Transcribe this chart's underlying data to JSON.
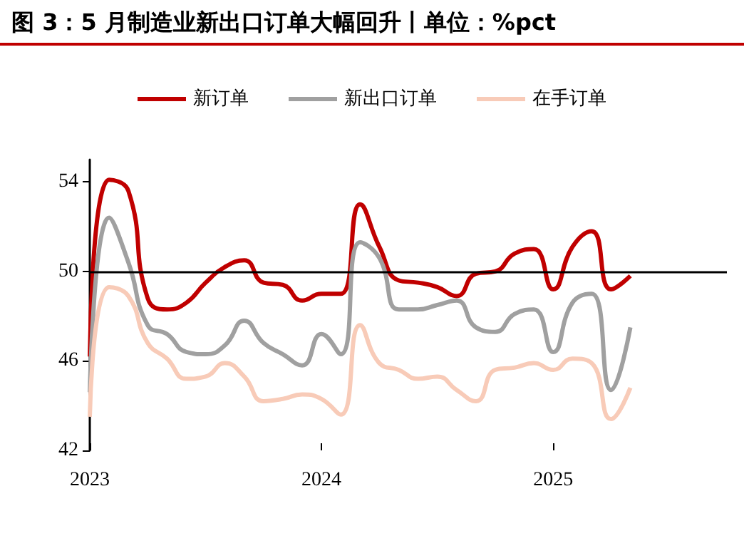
{
  "chart_data": {
    "type": "line",
    "title": "图 3：5 月制造业新出口订单大幅回升丨单位：%pct",
    "x": [
      "2023-01",
      "2023-02",
      "2023-03",
      "2023-04",
      "2023-05",
      "2023-06",
      "2023-07",
      "2023-08",
      "2023-09",
      "2023-10",
      "2023-11",
      "2023-12",
      "2024-01",
      "2024-02",
      "2024-03",
      "2024-04",
      "2024-05",
      "2024-06",
      "2024-07",
      "2024-08",
      "2024-09",
      "2024-10",
      "2024-11",
      "2024-12",
      "2025-01",
      "2025-02",
      "2025-03",
      "2025-04",
      "2025-05"
    ],
    "series": [
      {
        "name": "新订单",
        "color": "#c00000",
        "values": [
          46.2,
          54.1,
          53.6,
          48.8,
          48.3,
          48.6,
          49.5,
          50.2,
          50.5,
          49.5,
          49.4,
          48.7,
          49.0,
          49.0,
          53.0,
          51.1,
          49.6,
          49.5,
          49.3,
          48.9,
          49.9,
          50.0,
          50.8,
          51.0,
          49.2,
          51.1,
          51.8,
          49.2,
          49.8
        ]
      },
      {
        "name": "新出口订单",
        "color": "#a0a0a0",
        "values": [
          44.6,
          52.4,
          50.4,
          47.6,
          47.2,
          46.4,
          46.3,
          46.7,
          47.8,
          46.8,
          46.3,
          45.8,
          47.2,
          46.3,
          51.3,
          50.6,
          48.3,
          48.3,
          48.5,
          48.7,
          47.5,
          47.3,
          48.1,
          48.3,
          46.4,
          48.6,
          49.0,
          44.7,
          47.5
        ]
      },
      {
        "name": "在手订单",
        "color": "#f8cbb8",
        "values": [
          43.5,
          49.3,
          48.9,
          46.8,
          46.1,
          45.2,
          45.3,
          45.9,
          45.3,
          44.2,
          44.3,
          44.5,
          44.3,
          43.6,
          47.6,
          45.9,
          45.6,
          45.2,
          45.3,
          44.7,
          44.2,
          45.6,
          45.7,
          45.9,
          45.6,
          46.1,
          45.9,
          43.4,
          44.8
        ]
      }
    ],
    "xlim": [
      "2023-01",
      "2025-10"
    ],
    "xticks": [
      {
        "value": "2023-01",
        "label": "2023"
      },
      {
        "value": "2024-01",
        "label": "2024"
      },
      {
        "value": "2025-01",
        "label": "2025"
      }
    ],
    "ylim": [
      42,
      55
    ],
    "yticks": [
      42,
      46,
      50,
      54
    ],
    "ref_lines": [
      {
        "axis": "y",
        "value": 50,
        "color": "#000000"
      }
    ],
    "grid": false,
    "legend": "top",
    "marker": "none",
    "line_style": "solid"
  }
}
